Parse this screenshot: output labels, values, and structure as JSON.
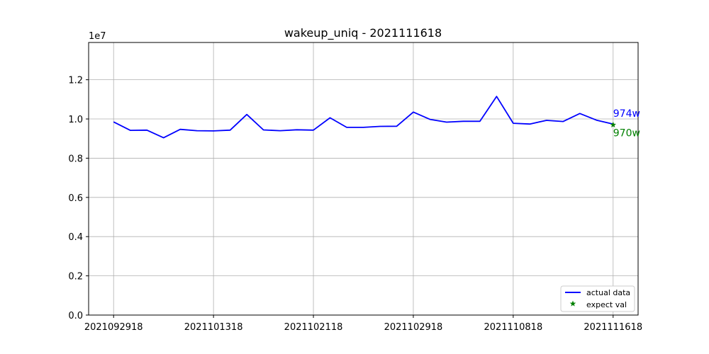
{
  "chart_data": {
    "type": "line",
    "title": "wakeup_uniq - 2021111618",
    "xlabel": "",
    "ylabel": "",
    "y_multiplier_label": "1e7",
    "ylim": [
      0,
      13900000
    ],
    "yticks": [
      0,
      2000000,
      4000000,
      6000000,
      8000000,
      10000000,
      12000000
    ],
    "ytick_labels": [
      "0.0",
      "0.2",
      "0.4",
      "0.6",
      "0.8",
      "1.0",
      "1.2"
    ],
    "xlim": [
      -1.5,
      31.5
    ],
    "xticks": [
      0,
      6,
      12,
      18,
      24,
      30
    ],
    "xtick_labels": [
      "2021092918",
      "2021101318",
      "2021102118",
      "2021102918",
      "2021110818",
      "2021111618"
    ],
    "grid": true,
    "legend_position": "lower-right",
    "series": [
      {
        "name": "actual data",
        "color": "#0000ff",
        "values": [
          9850000,
          9420000,
          9430000,
          9040000,
          9470000,
          9400000,
          9390000,
          9430000,
          10230000,
          9440000,
          9400000,
          9450000,
          9430000,
          10060000,
          9570000,
          9570000,
          9620000,
          9630000,
          10350000,
          9980000,
          9840000,
          9880000,
          9880000,
          11150000,
          9780000,
          9740000,
          9930000,
          9870000,
          10280000,
          9940000,
          9740000
        ]
      }
    ],
    "expected": {
      "name": "expect val",
      "color": "#008000",
      "x": 30,
      "value": 9700000
    },
    "annotations": [
      {
        "text": "974w",
        "color": "#0000ff"
      },
      {
        "text": "970w",
        "color": "#008000"
      }
    ]
  }
}
